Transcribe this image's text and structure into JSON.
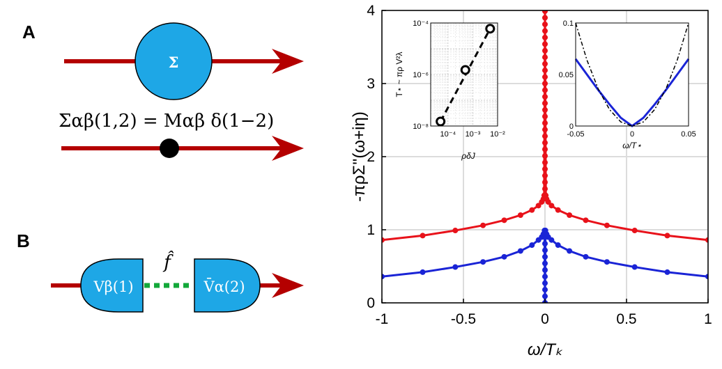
{
  "figure": {
    "panels": {
      "a": "A",
      "b": "B"
    },
    "diagram_a": {
      "bubble_symbol": "Σ",
      "equation": "Σαβ(1,2) = Mαβ δ(1−2)"
    },
    "diagram_b": {
      "left_vertex": "Vβ(1)",
      "right_vertex": "V̄α(2)",
      "propagator_label": "f̂"
    },
    "colors": {
      "arrow": "#b40000",
      "bubble": "#1ea7e6",
      "dots": "#13a83a",
      "red": "#e8121a",
      "blue": "#1a24d6"
    }
  },
  "chart_data": [
    {
      "type": "line",
      "xlabel": "ω/T_K",
      "ylabel": "-πρΣ''(ω+iη)",
      "xlim": [
        -1,
        1
      ],
      "ylim": [
        0,
        4
      ],
      "xticks": [
        "-1",
        "-0.5",
        "0",
        "0.5",
        "1"
      ],
      "yticks": [
        "0",
        "1",
        "2",
        "3",
        "4"
      ],
      "grid": true,
      "series": [
        {
          "color": "#e8121a",
          "x": [
            -1.0,
            -0.75,
            -0.55,
            -0.38,
            -0.25,
            -0.15,
            -0.08,
            -0.04,
            -0.02,
            -0.01,
            -0.005,
            0.0,
            0.005,
            0.01,
            0.02,
            0.04,
            0.08,
            0.15,
            0.25,
            0.38,
            0.55,
            0.75,
            1.0
          ],
          "y": [
            0.86,
            0.92,
            0.99,
            1.06,
            1.13,
            1.2,
            1.27,
            1.33,
            1.38,
            1.42,
            1.47,
            4.0,
            1.47,
            1.42,
            1.38,
            1.33,
            1.27,
            1.2,
            1.13,
            1.06,
            0.99,
            0.92,
            0.86
          ]
        },
        {
          "color": "#1a24d6",
          "x": [
            -1.0,
            -0.75,
            -0.55,
            -0.38,
            -0.25,
            -0.15,
            -0.08,
            -0.04,
            -0.02,
            -0.01,
            -0.003,
            0.0,
            0.003,
            0.01,
            0.02,
            0.04,
            0.08,
            0.15,
            0.25,
            0.38,
            0.55,
            0.75,
            1.0
          ],
          "y": [
            0.36,
            0.42,
            0.49,
            0.56,
            0.63,
            0.71,
            0.79,
            0.86,
            0.9,
            0.94,
            0.99,
            0.0,
            0.99,
            0.94,
            0.9,
            0.86,
            0.79,
            0.71,
            0.63,
            0.56,
            0.49,
            0.42,
            0.36
          ]
        }
      ]
    },
    {
      "type": "scatter",
      "xlabel": "ρδJ",
      "ylabel": "T⋆ ~ πρ V²λ",
      "xscale": "log",
      "yscale": "log",
      "xlim": [
        2e-05,
        0.01
      ],
      "ylim": [
        1e-08,
        0.0001
      ],
      "xticks": [
        "10⁻⁴",
        "10⁻³",
        "10⁻²"
      ],
      "yticks": [
        "10⁻⁸",
        "10⁻⁶",
        "10⁻⁴"
      ],
      "grid": true,
      "x": [
        5e-05,
        0.0005,
        0.005
      ],
      "y": [
        1.5e-08,
        1.5e-06,
        6e-05
      ],
      "fit_line": true
    },
    {
      "type": "line",
      "xlabel": "ω/T⋆",
      "xlim": [
        -0.05,
        0.05
      ],
      "ylim": [
        0,
        0.1
      ],
      "xticks": [
        "-0.05",
        "0",
        "0.05"
      ],
      "yticks": [
        "0",
        "0.05",
        "0.1"
      ],
      "grid": false,
      "series": [
        {
          "color": "#1a24d6",
          "x": [
            -0.05,
            -0.04,
            -0.03,
            -0.02,
            -0.01,
            0.0,
            0.01,
            0.02,
            0.03,
            0.04,
            0.05
          ],
          "y": [
            0.065,
            0.05,
            0.035,
            0.021,
            0.008,
            0.0,
            0.008,
            0.021,
            0.035,
            0.05,
            0.065
          ]
        },
        {
          "color": "#000000",
          "dashed": true,
          "x": [
            -0.05,
            -0.04,
            -0.03,
            -0.02,
            -0.01,
            0.0,
            0.01,
            0.02,
            0.03,
            0.04,
            0.05
          ],
          "y": [
            0.1,
            0.064,
            0.036,
            0.016,
            0.004,
            0.0,
            0.004,
            0.016,
            0.036,
            0.064,
            0.1
          ]
        }
      ]
    }
  ]
}
